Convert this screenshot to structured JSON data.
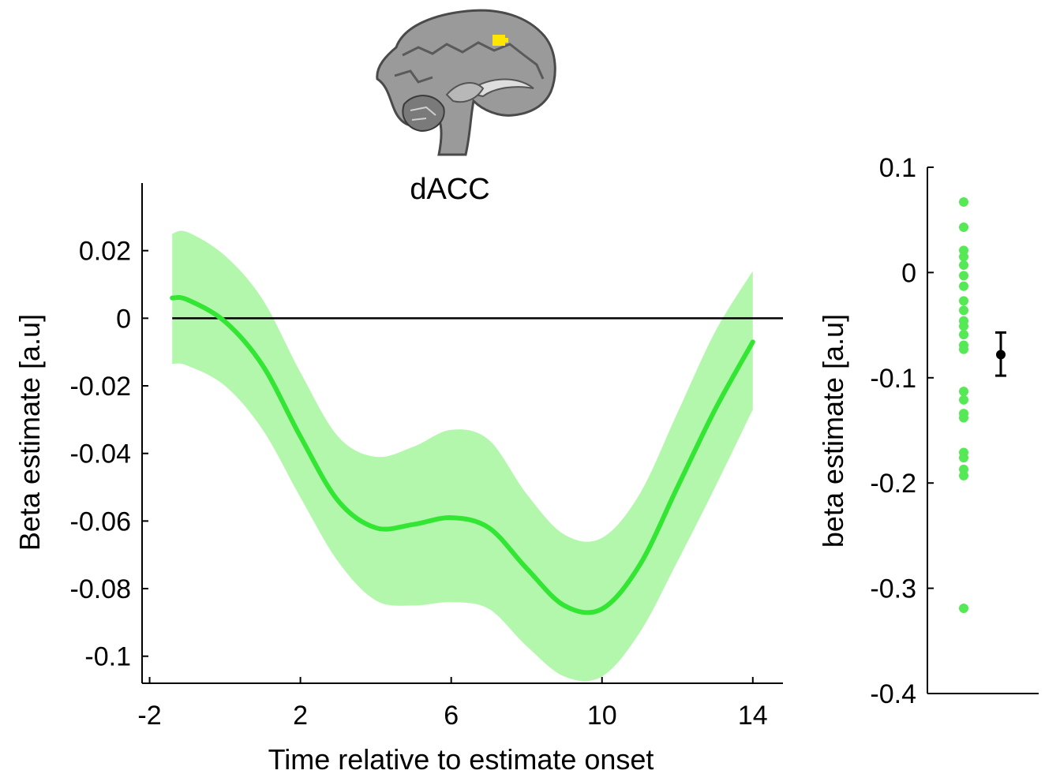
{
  "chart_data": [
    {
      "type": "line",
      "title": "dACC",
      "xlabel": "Time relative to estimate onset",
      "ylabel": "Beta estimate [a.u]",
      "xlim": [
        -2.2,
        14.8
      ],
      "ylim": [
        -0.108,
        0.04
      ],
      "xticks": [
        -2,
        2,
        6,
        10,
        14
      ],
      "xtick_labels": [
        "-2",
        "2",
        "6",
        "10",
        "14"
      ],
      "yticks": [
        0.02,
        0,
        -0.02,
        -0.04,
        -0.06,
        -0.08,
        -0.1
      ],
      "ytick_labels": [
        "0.02",
        "0",
        "-0.02",
        "-0.04",
        "-0.06",
        "-0.08",
        "-0.1"
      ],
      "reference_line_y": 0,
      "line_color": "#33e633",
      "band_color": "#b3f7ad",
      "series": [
        {
          "x": [
            -1.4,
            -1,
            0,
            1,
            2,
            3,
            4,
            5,
            6,
            7,
            8,
            9,
            10,
            11,
            12,
            13,
            14
          ],
          "values": [
            0.006,
            0.0055,
            -0.001,
            -0.014,
            -0.035,
            -0.054,
            -0.062,
            -0.061,
            -0.059,
            -0.062,
            -0.074,
            -0.085,
            -0.086,
            -0.073,
            -0.05,
            -0.027,
            -0.007
          ],
          "lower": [
            -0.0135,
            -0.014,
            -0.02,
            -0.033,
            -0.053,
            -0.072,
            -0.0835,
            -0.085,
            -0.084,
            -0.086,
            -0.097,
            -0.106,
            -0.106,
            -0.093,
            -0.072,
            -0.05,
            -0.027
          ],
          "upper": [
            0.025,
            0.0255,
            0.0185,
            0.0055,
            -0.016,
            -0.035,
            -0.041,
            -0.038,
            -0.033,
            -0.036,
            -0.052,
            -0.064,
            -0.065,
            -0.052,
            -0.028,
            -0.004,
            0.014
          ]
        }
      ]
    },
    {
      "type": "scatter",
      "ylabel": "beta estimate [a.u]",
      "ylim": [
        -0.4,
        0.1
      ],
      "yticks": [
        0.1,
        0,
        -0.1,
        -0.2,
        -0.3,
        -0.4
      ],
      "ytick_labels": [
        "0.1",
        "0",
        "-0.1",
        "-0.2",
        "-0.3",
        "-0.4"
      ],
      "point_color": "#55ea55",
      "points": [
        0.067,
        0.043,
        0.021,
        0.015,
        0.007,
        -0.003,
        -0.013,
        -0.027,
        -0.036,
        -0.046,
        -0.051,
        -0.059,
        -0.069,
        -0.073,
        -0.113,
        -0.121,
        -0.134,
        -0.138,
        -0.171,
        -0.176,
        -0.187,
        -0.193,
        -0.319
      ],
      "summary": {
        "mean": -0.078,
        "error_low": -0.098,
        "error_high": -0.057,
        "color": "#000000"
      }
    }
  ]
}
